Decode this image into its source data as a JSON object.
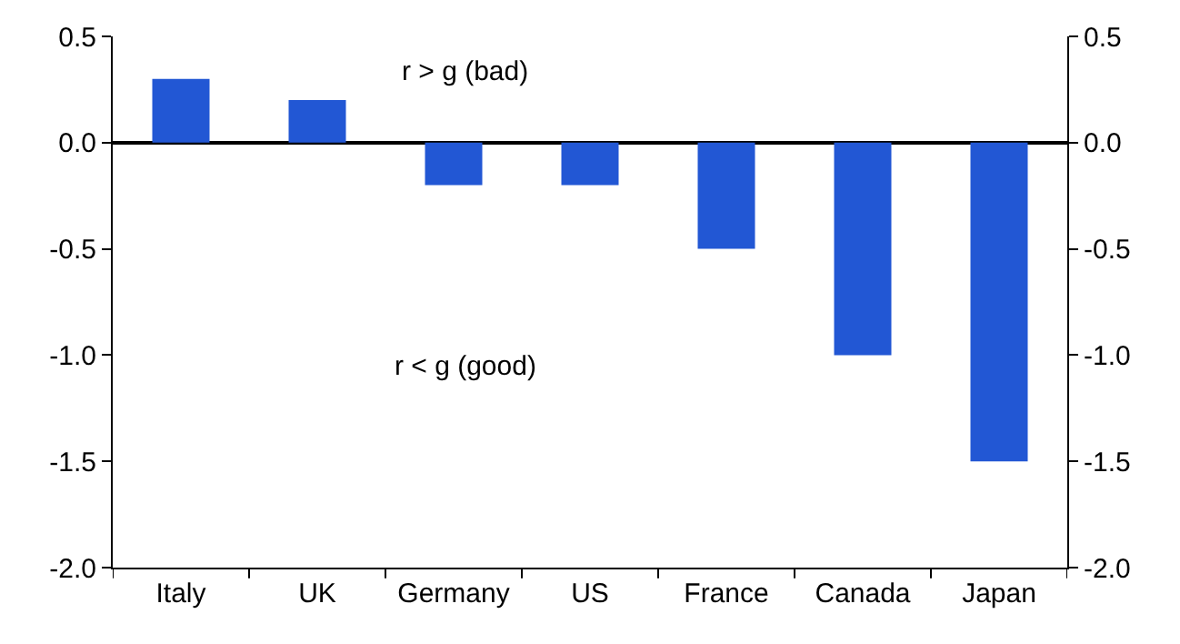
{
  "chart_data": {
    "type": "bar",
    "categories": [
      "Italy",
      "UK",
      "Germany",
      "US",
      "France",
      "Canada",
      "Japan"
    ],
    "values": [
      0.3,
      0.2,
      -0.2,
      -0.2,
      -0.5,
      -1.0,
      -1.5
    ],
    "color": "#2257d4",
    "ylim": [
      -2.0,
      0.5
    ],
    "yticks": [
      {
        "value": -2.0,
        "label": "-2.0"
      },
      {
        "value": -1.5,
        "label": "-1.5"
      },
      {
        "value": -1.0,
        "label": "-1.0"
      },
      {
        "value": -0.5,
        "label": "-0.5"
      },
      {
        "value": 0.0,
        "label": "0.0"
      },
      {
        "value": 0.5,
        "label": "0.5"
      }
    ],
    "y2lim": [
      -2.0,
      0.5
    ],
    "y2ticks": [
      {
        "value": -2.0,
        "label": "-2.0"
      },
      {
        "value": -1.5,
        "label": "-1.5"
      },
      {
        "value": -1.0,
        "label": "-1.0"
      },
      {
        "value": -0.5,
        "label": "-0.5"
      },
      {
        "value": 0.0,
        "label": "0.0"
      },
      {
        "value": 0.5,
        "label": "0.5"
      }
    ],
    "annotations": [
      "r > g (bad)",
      "r < g (good)"
    ]
  }
}
